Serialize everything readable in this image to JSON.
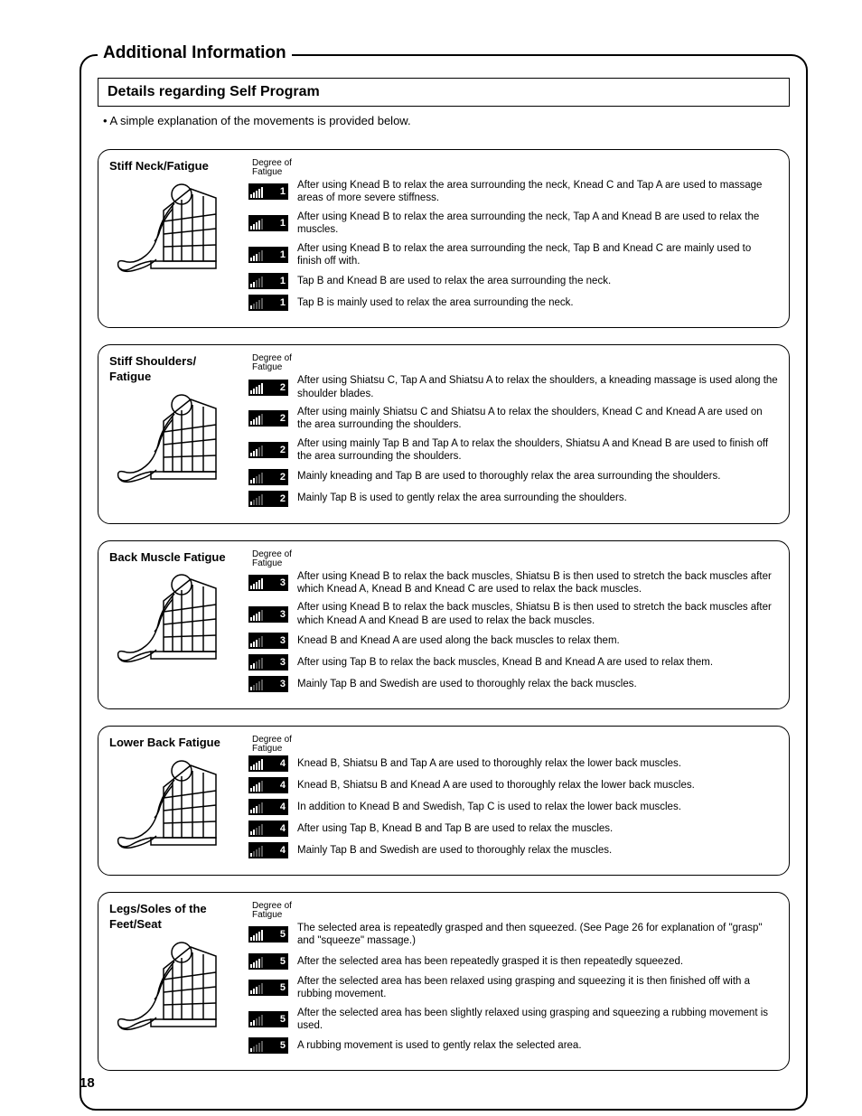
{
  "page": {
    "title": "Additional Information",
    "subtitle": "Details regarding Self Program",
    "intro": "• A simple explanation of the movements is provided below.",
    "degree_label_line1": "Degree of",
    "degree_label_line2": "Fatigue",
    "page_number": "18"
  },
  "sections": [
    {
      "title": "Stiff Neck/Fatigue",
      "num": "1",
      "rows": [
        {
          "level": 5,
          "text": "After using Knead B to relax the area surrounding the neck, Knead C and Tap A are used to massage areas of more severe stiffness."
        },
        {
          "level": 4,
          "text": "After using Knead B to relax the area surrounding the neck, Tap A and Knead B are used to relax the muscles."
        },
        {
          "level": 3,
          "text": "After using Knead B to relax the area surrounding the neck, Tap B and Knead C are mainly used to finish off with."
        },
        {
          "level": 2,
          "text": "Tap B and Knead B are used to relax the area surrounding the neck."
        },
        {
          "level": 1,
          "text": "Tap B is mainly used to relax the area surrounding the neck."
        }
      ]
    },
    {
      "title": "Stiff Shoulders/ Fatigue",
      "num": "2",
      "rows": [
        {
          "level": 5,
          "text": "After using Shiatsu C, Tap A and Shiatsu A to relax the shoulders, a kneading massage is used along the shoulder blades."
        },
        {
          "level": 4,
          "text": "After using mainly Shiatsu C and Shiatsu A to relax the shoulders, Knead C and Knead A are used on the area surrounding the shoulders."
        },
        {
          "level": 3,
          "text": "After using mainly Tap B and Tap A to relax the shoulders, Shiatsu A and Knead B are used to finish off the area surrounding the shoulders."
        },
        {
          "level": 2,
          "text": "Mainly kneading and Tap B are used to thoroughly relax the area surrounding the shoulders."
        },
        {
          "level": 1,
          "text": "Mainly Tap B is used to gently relax the area surrounding the shoulders."
        }
      ]
    },
    {
      "title": "Back Muscle Fatigue",
      "num": "3",
      "rows": [
        {
          "level": 5,
          "text": "After using Knead B to relax the back muscles, Shiatsu B is then used to stretch the back muscles after which Knead A, Knead B and Knead C are used to relax the back muscles."
        },
        {
          "level": 4,
          "text": "After using Knead B to relax the back muscles, Shiatsu B is then used to stretch the back muscles after which Knead A and Knead B are used to relax the back muscles."
        },
        {
          "level": 3,
          "text": "Knead B and Knead A are used along the back muscles to relax them."
        },
        {
          "level": 2,
          "text": "After using Tap B to relax the back muscles, Knead B and Knead A are used to relax them."
        },
        {
          "level": 1,
          "text": "Mainly Tap B and Swedish are used to thoroughly relax the back muscles."
        }
      ]
    },
    {
      "title": "Lower Back Fatigue",
      "num": "4",
      "rows": [
        {
          "level": 5,
          "text": "Knead B, Shiatsu B and Tap A are used to thoroughly relax the lower back muscles."
        },
        {
          "level": 4,
          "text": "Knead B, Shiatsu B and Knead A are used to thoroughly relax the lower back muscles."
        },
        {
          "level": 3,
          "text": "In addition to Knead B and Swedish, Tap C is used to relax the lower back muscles."
        },
        {
          "level": 2,
          "text": "After using Tap B, Knead B and Tap B are used to relax the muscles."
        },
        {
          "level": 1,
          "text": "Mainly Tap B and Swedish are used to thoroughly relax the muscles."
        }
      ]
    },
    {
      "title": "Legs/Soles of the Feet/Seat",
      "num": "5",
      "rows": [
        {
          "level": 5,
          "text": "The selected area is repeatedly grasped and then squeezed. (See Page 26 for explanation of \"grasp\" and \"squeeze\" massage.)"
        },
        {
          "level": 4,
          "text": "After the selected area has been repeatedly grasped it is then repeatedly squeezed."
        },
        {
          "level": 3,
          "text": "After the selected area has been relaxed using grasping and squeezing it is then finished off with a rubbing movement."
        },
        {
          "level": 2,
          "text": "After the selected area has been slightly relaxed using grasping and squeezing a rubbing movement is used."
        },
        {
          "level": 1,
          "text": "A rubbing movement is used to gently relax the selected area."
        }
      ]
    }
  ]
}
